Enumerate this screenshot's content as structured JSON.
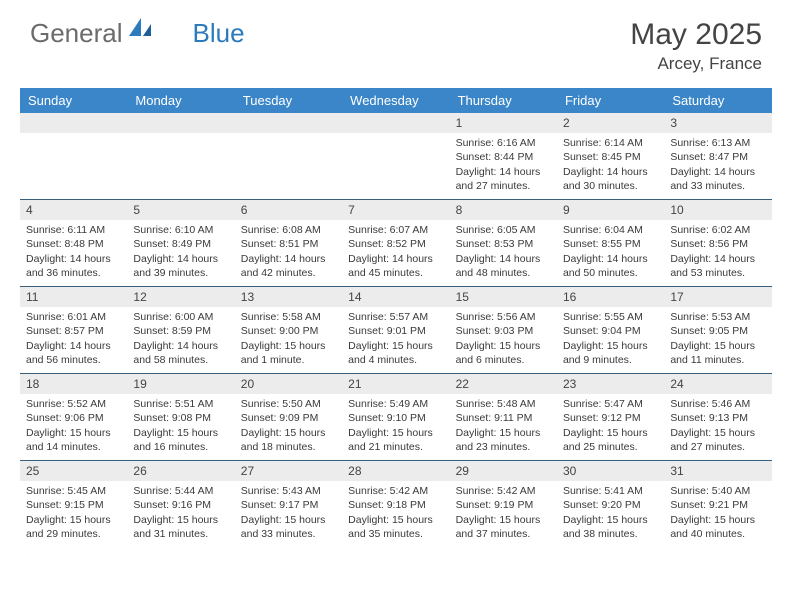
{
  "brand": {
    "part1": "General",
    "part2": "Blue"
  },
  "title": "May 2025",
  "location": "Arcey, France",
  "colors": {
    "header_bg": "#3a86c8",
    "header_text": "#ffffff",
    "rule": "#3a5f7a",
    "daynum_bg": "#ececec",
    "body_text": "#3a3a3a",
    "logo_gray": "#6b6b6b",
    "logo_blue": "#2b7bbd",
    "page_bg": "#ffffff"
  },
  "fonts": {
    "title_size_pt": 22,
    "location_size_pt": 13,
    "dayhead_size_pt": 10,
    "cell_size_pt": 8
  },
  "day_names": [
    "Sunday",
    "Monday",
    "Tuesday",
    "Wednesday",
    "Thursday",
    "Friday",
    "Saturday"
  ],
  "weeks": [
    [
      {
        "n": "",
        "sunrise": "",
        "sunset": "",
        "daylight": ""
      },
      {
        "n": "",
        "sunrise": "",
        "sunset": "",
        "daylight": ""
      },
      {
        "n": "",
        "sunrise": "",
        "sunset": "",
        "daylight": ""
      },
      {
        "n": "",
        "sunrise": "",
        "sunset": "",
        "daylight": ""
      },
      {
        "n": "1",
        "sunrise": "6:16 AM",
        "sunset": "8:44 PM",
        "daylight": "14 hours and 27 minutes."
      },
      {
        "n": "2",
        "sunrise": "6:14 AM",
        "sunset": "8:45 PM",
        "daylight": "14 hours and 30 minutes."
      },
      {
        "n": "3",
        "sunrise": "6:13 AM",
        "sunset": "8:47 PM",
        "daylight": "14 hours and 33 minutes."
      }
    ],
    [
      {
        "n": "4",
        "sunrise": "6:11 AM",
        "sunset": "8:48 PM",
        "daylight": "14 hours and 36 minutes."
      },
      {
        "n": "5",
        "sunrise": "6:10 AM",
        "sunset": "8:49 PM",
        "daylight": "14 hours and 39 minutes."
      },
      {
        "n": "6",
        "sunrise": "6:08 AM",
        "sunset": "8:51 PM",
        "daylight": "14 hours and 42 minutes."
      },
      {
        "n": "7",
        "sunrise": "6:07 AM",
        "sunset": "8:52 PM",
        "daylight": "14 hours and 45 minutes."
      },
      {
        "n": "8",
        "sunrise": "6:05 AM",
        "sunset": "8:53 PM",
        "daylight": "14 hours and 48 minutes."
      },
      {
        "n": "9",
        "sunrise": "6:04 AM",
        "sunset": "8:55 PM",
        "daylight": "14 hours and 50 minutes."
      },
      {
        "n": "10",
        "sunrise": "6:02 AM",
        "sunset": "8:56 PM",
        "daylight": "14 hours and 53 minutes."
      }
    ],
    [
      {
        "n": "11",
        "sunrise": "6:01 AM",
        "sunset": "8:57 PM",
        "daylight": "14 hours and 56 minutes."
      },
      {
        "n": "12",
        "sunrise": "6:00 AM",
        "sunset": "8:59 PM",
        "daylight": "14 hours and 58 minutes."
      },
      {
        "n": "13",
        "sunrise": "5:58 AM",
        "sunset": "9:00 PM",
        "daylight": "15 hours and 1 minute."
      },
      {
        "n": "14",
        "sunrise": "5:57 AM",
        "sunset": "9:01 PM",
        "daylight": "15 hours and 4 minutes."
      },
      {
        "n": "15",
        "sunrise": "5:56 AM",
        "sunset": "9:03 PM",
        "daylight": "15 hours and 6 minutes."
      },
      {
        "n": "16",
        "sunrise": "5:55 AM",
        "sunset": "9:04 PM",
        "daylight": "15 hours and 9 minutes."
      },
      {
        "n": "17",
        "sunrise": "5:53 AM",
        "sunset": "9:05 PM",
        "daylight": "15 hours and 11 minutes."
      }
    ],
    [
      {
        "n": "18",
        "sunrise": "5:52 AM",
        "sunset": "9:06 PM",
        "daylight": "15 hours and 14 minutes."
      },
      {
        "n": "19",
        "sunrise": "5:51 AM",
        "sunset": "9:08 PM",
        "daylight": "15 hours and 16 minutes."
      },
      {
        "n": "20",
        "sunrise": "5:50 AM",
        "sunset": "9:09 PM",
        "daylight": "15 hours and 18 minutes."
      },
      {
        "n": "21",
        "sunrise": "5:49 AM",
        "sunset": "9:10 PM",
        "daylight": "15 hours and 21 minutes."
      },
      {
        "n": "22",
        "sunrise": "5:48 AM",
        "sunset": "9:11 PM",
        "daylight": "15 hours and 23 minutes."
      },
      {
        "n": "23",
        "sunrise": "5:47 AM",
        "sunset": "9:12 PM",
        "daylight": "15 hours and 25 minutes."
      },
      {
        "n": "24",
        "sunrise": "5:46 AM",
        "sunset": "9:13 PM",
        "daylight": "15 hours and 27 minutes."
      }
    ],
    [
      {
        "n": "25",
        "sunrise": "5:45 AM",
        "sunset": "9:15 PM",
        "daylight": "15 hours and 29 minutes."
      },
      {
        "n": "26",
        "sunrise": "5:44 AM",
        "sunset": "9:16 PM",
        "daylight": "15 hours and 31 minutes."
      },
      {
        "n": "27",
        "sunrise": "5:43 AM",
        "sunset": "9:17 PM",
        "daylight": "15 hours and 33 minutes."
      },
      {
        "n": "28",
        "sunrise": "5:42 AM",
        "sunset": "9:18 PM",
        "daylight": "15 hours and 35 minutes."
      },
      {
        "n": "29",
        "sunrise": "5:42 AM",
        "sunset": "9:19 PM",
        "daylight": "15 hours and 37 minutes."
      },
      {
        "n": "30",
        "sunrise": "5:41 AM",
        "sunset": "9:20 PM",
        "daylight": "15 hours and 38 minutes."
      },
      {
        "n": "31",
        "sunrise": "5:40 AM",
        "sunset": "9:21 PM",
        "daylight": "15 hours and 40 minutes."
      }
    ]
  ],
  "labels": {
    "sunrise_prefix": "Sunrise: ",
    "sunset_prefix": "Sunset: ",
    "daylight_prefix": "Daylight: "
  }
}
